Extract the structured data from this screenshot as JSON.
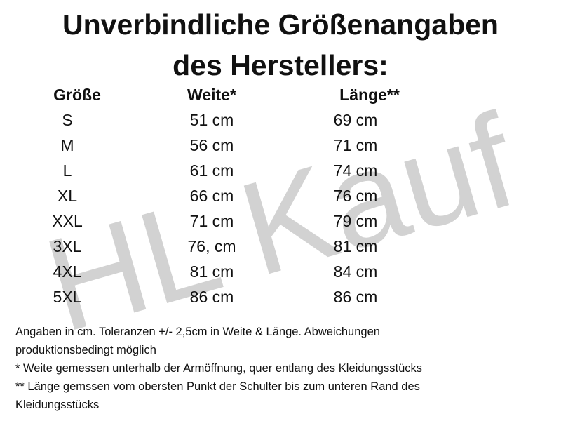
{
  "watermark": "HL Kauf",
  "title": [
    "Unverbindliche Größenangaben",
    "des Herstellers:"
  ],
  "table": {
    "header": [
      "Größe",
      "Weite*",
      "Länge**"
    ],
    "rows": [
      [
        "S",
        "51 cm",
        "69 cm"
      ],
      [
        "M",
        "56 cm",
        "71 cm"
      ],
      [
        "L",
        "61 cm",
        "74 cm"
      ],
      [
        "XL",
        "66 cm",
        "76 cm"
      ],
      [
        "XXL",
        "71 cm",
        "79 cm"
      ],
      [
        "3XL",
        "76, cm",
        "81 cm"
      ],
      [
        "4XL",
        "81 cm",
        "84 cm"
      ],
      [
        "5XL",
        "86 cm",
        "86 cm"
      ]
    ]
  },
  "footnotes": [
    "Angaben in cm.  Toleranzen +/- 2,5cm in Weite & Länge. Abweichungen",
    "produktionsbedingt möglich",
    "* Weite gemessen unterhalb der Armöffnung, quer entlang des Kleidungsstücks",
    "** Länge gemssen vom obersten Punkt der Schulter bis zum unteren Rand des",
    "Kleidungsstücks"
  ]
}
